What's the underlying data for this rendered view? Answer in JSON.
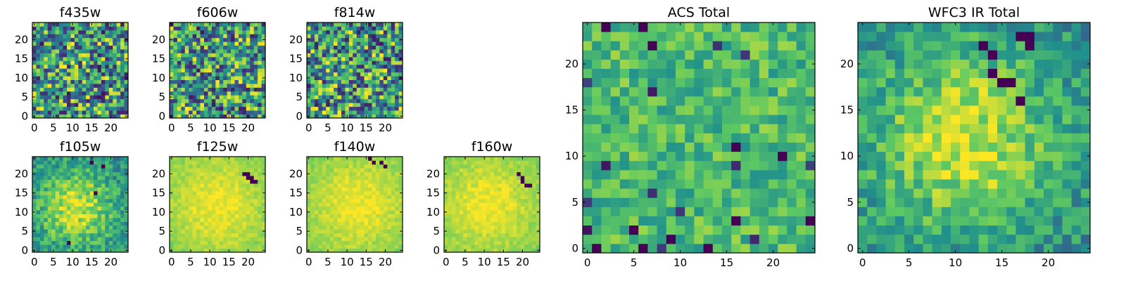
{
  "figure": {
    "description_type": "grid of heatmap image panels",
    "colormap": "viridis",
    "colormap_stops": [
      "#440154",
      "#3b528b",
      "#21918c",
      "#5ec962",
      "#fde725"
    ]
  },
  "chart_data": [
    {
      "type": "heatmap",
      "title": "f435w",
      "size": 25,
      "xlim": [
        0,
        24
      ],
      "ylim": [
        0,
        24
      ],
      "x_ticks": [
        "0",
        "5",
        "10",
        "15",
        "20"
      ],
      "y_ticks": [
        "0",
        "5",
        "10",
        "15",
        "20"
      ],
      "pattern": "noise",
      "noise_level": "high",
      "dark_pixel_fraction": 0.04
    },
    {
      "type": "heatmap",
      "title": "f606w",
      "size": 25,
      "xlim": [
        0,
        24
      ],
      "ylim": [
        0,
        24
      ],
      "x_ticks": [
        "0",
        "5",
        "10",
        "15",
        "20"
      ],
      "y_ticks": [
        "0",
        "5",
        "10",
        "15",
        "20"
      ],
      "pattern": "noise",
      "noise_level": "high",
      "dark_pixel_fraction": 0.05
    },
    {
      "type": "heatmap",
      "title": "f814w",
      "size": 25,
      "xlim": [
        0,
        24
      ],
      "ylim": [
        0,
        24
      ],
      "x_ticks": [
        "0",
        "5",
        "10",
        "15",
        "20"
      ],
      "y_ticks": [
        "0",
        "5",
        "10",
        "15",
        "20"
      ],
      "pattern": "noise",
      "noise_level": "high",
      "dark_pixel_fraction": 0.04
    },
    {
      "type": "heatmap",
      "title": "f105w",
      "size": 25,
      "xlim": [
        0,
        24
      ],
      "ylim": [
        0,
        24
      ],
      "x_ticks": [
        "0",
        "5",
        "10",
        "15",
        "20"
      ],
      "y_ticks": [
        "0",
        "5",
        "10",
        "15",
        "20"
      ],
      "pattern": "noisy-source",
      "source_center": [
        11,
        11
      ],
      "noise_level": "medium",
      "dark_spots": [
        [
          15,
          23
        ],
        [
          18,
          22
        ],
        [
          9,
          2
        ],
        [
          16,
          15
        ]
      ]
    },
    {
      "type": "heatmap",
      "title": "f125w",
      "size": 25,
      "xlim": [
        0,
        24
      ],
      "ylim": [
        0,
        24
      ],
      "x_ticks": [
        "0",
        "5",
        "10",
        "15",
        "20"
      ],
      "y_ticks": [
        "0",
        "5",
        "10",
        "15",
        "20"
      ],
      "pattern": "smooth-source",
      "source_center": [
        12,
        12
      ],
      "noise_level": "low",
      "dark_spots": [
        [
          19,
          20
        ],
        [
          20,
          20
        ],
        [
          20,
          19
        ],
        [
          21,
          19
        ],
        [
          21,
          18
        ],
        [
          22,
          18
        ]
      ]
    },
    {
      "type": "heatmap",
      "title": "f140w",
      "size": 25,
      "xlim": [
        0,
        24
      ],
      "ylim": [
        0,
        24
      ],
      "x_ticks": [
        "0",
        "5",
        "10",
        "15",
        "20"
      ],
      "y_ticks": [
        "0",
        "5",
        "10",
        "15",
        "20"
      ],
      "pattern": "smooth-source",
      "source_center": [
        13,
        12
      ],
      "noise_level": "low",
      "dark_spots": [
        [
          16,
          24
        ],
        [
          17,
          23
        ],
        [
          19,
          23
        ],
        [
          20,
          22
        ]
      ]
    },
    {
      "type": "heatmap",
      "title": "f160w",
      "size": 25,
      "xlim": [
        0,
        24
      ],
      "ylim": [
        0,
        24
      ],
      "x_ticks": [
        "0",
        "5",
        "10",
        "15",
        "20"
      ],
      "y_ticks": [
        "0",
        "5",
        "10",
        "15",
        "20"
      ],
      "pattern": "smooth-source",
      "source_center": [
        11,
        12
      ],
      "noise_level": "low",
      "dark_spots": [
        [
          19,
          20
        ],
        [
          20,
          19
        ],
        [
          20,
          18
        ],
        [
          21,
          17
        ],
        [
          22,
          17
        ]
      ]
    },
    {
      "type": "heatmap",
      "title": "ACS Total",
      "size": 25,
      "xlim": [
        0,
        24
      ],
      "ylim": [
        0,
        24
      ],
      "x_ticks": [
        "0",
        "5",
        "10",
        "15",
        "20"
      ],
      "y_ticks": [
        "0",
        "5",
        "10",
        "15",
        "20"
      ],
      "pattern": "noise",
      "noise_level": "medium",
      "dark_pixel_fraction": 0.03,
      "dark_spots": [
        [
          2,
          24
        ],
        [
          6,
          24
        ],
        [
          7,
          22
        ],
        [
          16,
          11
        ],
        [
          21,
          10
        ],
        [
          24,
          3
        ],
        [
          16,
          3
        ],
        [
          6,
          0
        ],
        [
          13,
          0
        ],
        [
          1,
          0
        ],
        [
          5,
          2
        ],
        [
          9,
          1
        ]
      ]
    },
    {
      "type": "heatmap",
      "title": "WFC3 IR Total",
      "size": 25,
      "xlim": [
        0,
        24
      ],
      "ylim": [
        0,
        24
      ],
      "x_ticks": [
        "0",
        "5",
        "10",
        "15",
        "20"
      ],
      "y_ticks": [
        "0",
        "5",
        "10",
        "15",
        "20"
      ],
      "pattern": "noisy-source",
      "source_center": [
        11,
        12
      ],
      "noise_level": "medium",
      "dark_spots": [
        [
          17,
          23
        ],
        [
          18,
          23
        ],
        [
          18,
          22
        ],
        [
          13,
          22
        ],
        [
          14,
          21
        ],
        [
          15,
          18
        ],
        [
          16,
          18
        ],
        [
          17,
          16
        ],
        [
          14,
          19
        ]
      ]
    }
  ]
}
